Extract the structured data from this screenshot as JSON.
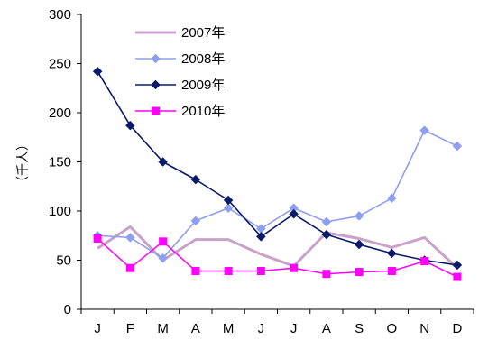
{
  "chart_data": {
    "type": "line",
    "title": "",
    "xlabel": "",
    "ylabel": "（千人）",
    "x": [
      "J",
      "F",
      "M",
      "A",
      "M",
      "J",
      "J",
      "A",
      "S",
      "O",
      "N",
      "D"
    ],
    "ylim": [
      0,
      300
    ],
    "yticks": [
      0,
      50,
      100,
      150,
      200,
      250,
      300
    ],
    "grid": false,
    "legend_position": "top-center",
    "series": [
      {
        "name": "2007年",
        "color": "#c8a2c8",
        "marker": "none",
        "values": [
          62,
          84,
          50,
          71,
          71,
          56,
          44,
          78,
          72,
          63,
          73,
          42
        ]
      },
      {
        "name": "2008年",
        "color": "#8e9ef0",
        "marker": "diamond",
        "values": [
          75,
          73,
          52,
          90,
          103,
          82,
          103,
          89,
          95,
          113,
          182,
          166
        ]
      },
      {
        "name": "2009年",
        "color": "#0a1a6b",
        "marker": "diamond",
        "values": [
          242,
          187,
          150,
          132,
          111,
          74,
          97,
          76,
          66,
          57,
          50,
          45
        ]
      },
      {
        "name": "2010年",
        "color": "#ff00ff",
        "marker": "square",
        "values": [
          72,
          42,
          69,
          39,
          39,
          39,
          42,
          36,
          38,
          39,
          49,
          33
        ]
      }
    ]
  }
}
